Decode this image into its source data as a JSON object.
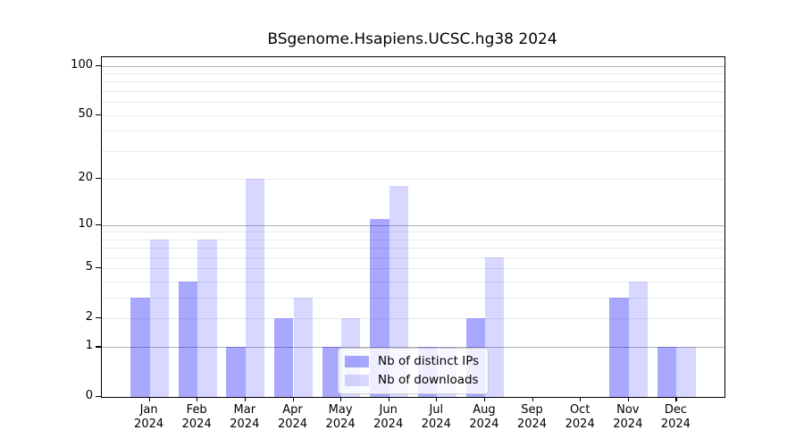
{
  "chart_data": {
    "type": "bar",
    "title": "BSgenome.Hsapiens.UCSC.hg38 2024",
    "categories": [
      "Jan",
      "Feb",
      "Mar",
      "Apr",
      "May",
      "Jun",
      "Jul",
      "Aug",
      "Sep",
      "Oct",
      "Nov",
      "Dec"
    ],
    "tick_year": "2024",
    "series": [
      {
        "key": "distinct-ips",
        "name": "Nb of distinct IPs",
        "color": "rgba(0,0,255,0.34)",
        "values": [
          3,
          4,
          1,
          2,
          1,
          11,
          1,
          2,
          0,
          0,
          3,
          1
        ]
      },
      {
        "key": "downloads",
        "name": "Nb of downloads",
        "color": "rgba(0,0,255,0.155)",
        "values": [
          8,
          8,
          20,
          3,
          2,
          18,
          1,
          6,
          0,
          0,
          4,
          1
        ]
      }
    ],
    "yticks": [
      0,
      1,
      2,
      5,
      10,
      20,
      50,
      100
    ],
    "ylim": [
      0,
      113
    ],
    "scale": "log1p",
    "xlabel": "",
    "ylabel": "",
    "grid": {
      "major": [
        1,
        10,
        100
      ],
      "minor": [
        2,
        3,
        4,
        5,
        6,
        7,
        8,
        9,
        20,
        30,
        40,
        50,
        60,
        70,
        80,
        90
      ],
      "major_color": "#b2b2b2",
      "minor_color": "#e9e9e9"
    },
    "legend_position": "lower center",
    "bar_width_fraction": 0.4,
    "spine_color": "#000000",
    "background_color": "#ffffff"
  }
}
